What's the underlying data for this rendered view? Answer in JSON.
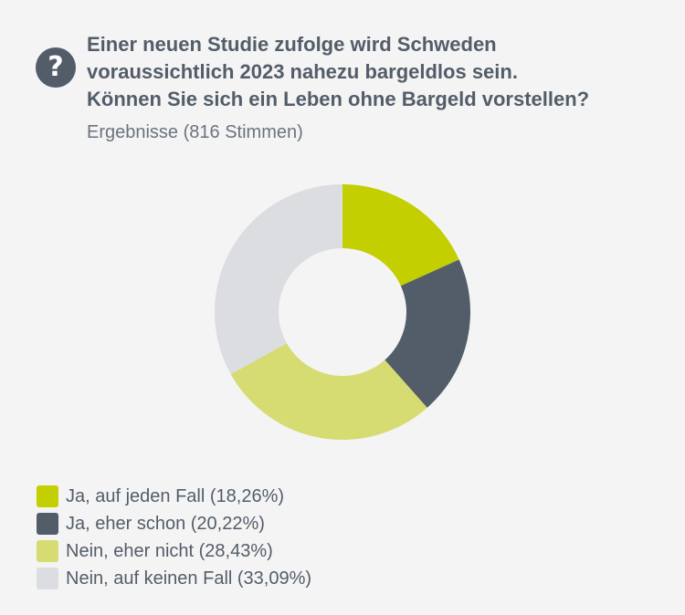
{
  "poll": {
    "question_icon": "question-circle-icon",
    "question_lines": [
      "Einer neuen Studie zufolge wird Schweden",
      "voraussichtlich 2023 nahezu bargeldlos sein.",
      "Können Sie sich ein Leben ohne Bargeld vorstellen?"
    ],
    "results_label": "Ergebnisse (816 Stimmen)"
  },
  "chart_data": {
    "type": "pie",
    "variant": "donut",
    "total_votes": 816,
    "categories": [
      "Ja, auf jeden Fall",
      "Ja, eher schon",
      "Nein, eher nicht",
      "Nein, auf keinen Fall"
    ],
    "values": [
      18.26,
      20.22,
      28.43,
      33.09
    ],
    "colors": [
      "#c3cf00",
      "#535d69",
      "#d6db72",
      "#dcdde1"
    ],
    "legend_labels": [
      "Ja, auf jeden Fall (18,26%)",
      "Ja, eher schon (20,22%)",
      "Nein, eher nicht (28,43%)",
      "Nein, auf keinen Fall (33,09%)"
    ],
    "legend_position": "bottom-left"
  }
}
